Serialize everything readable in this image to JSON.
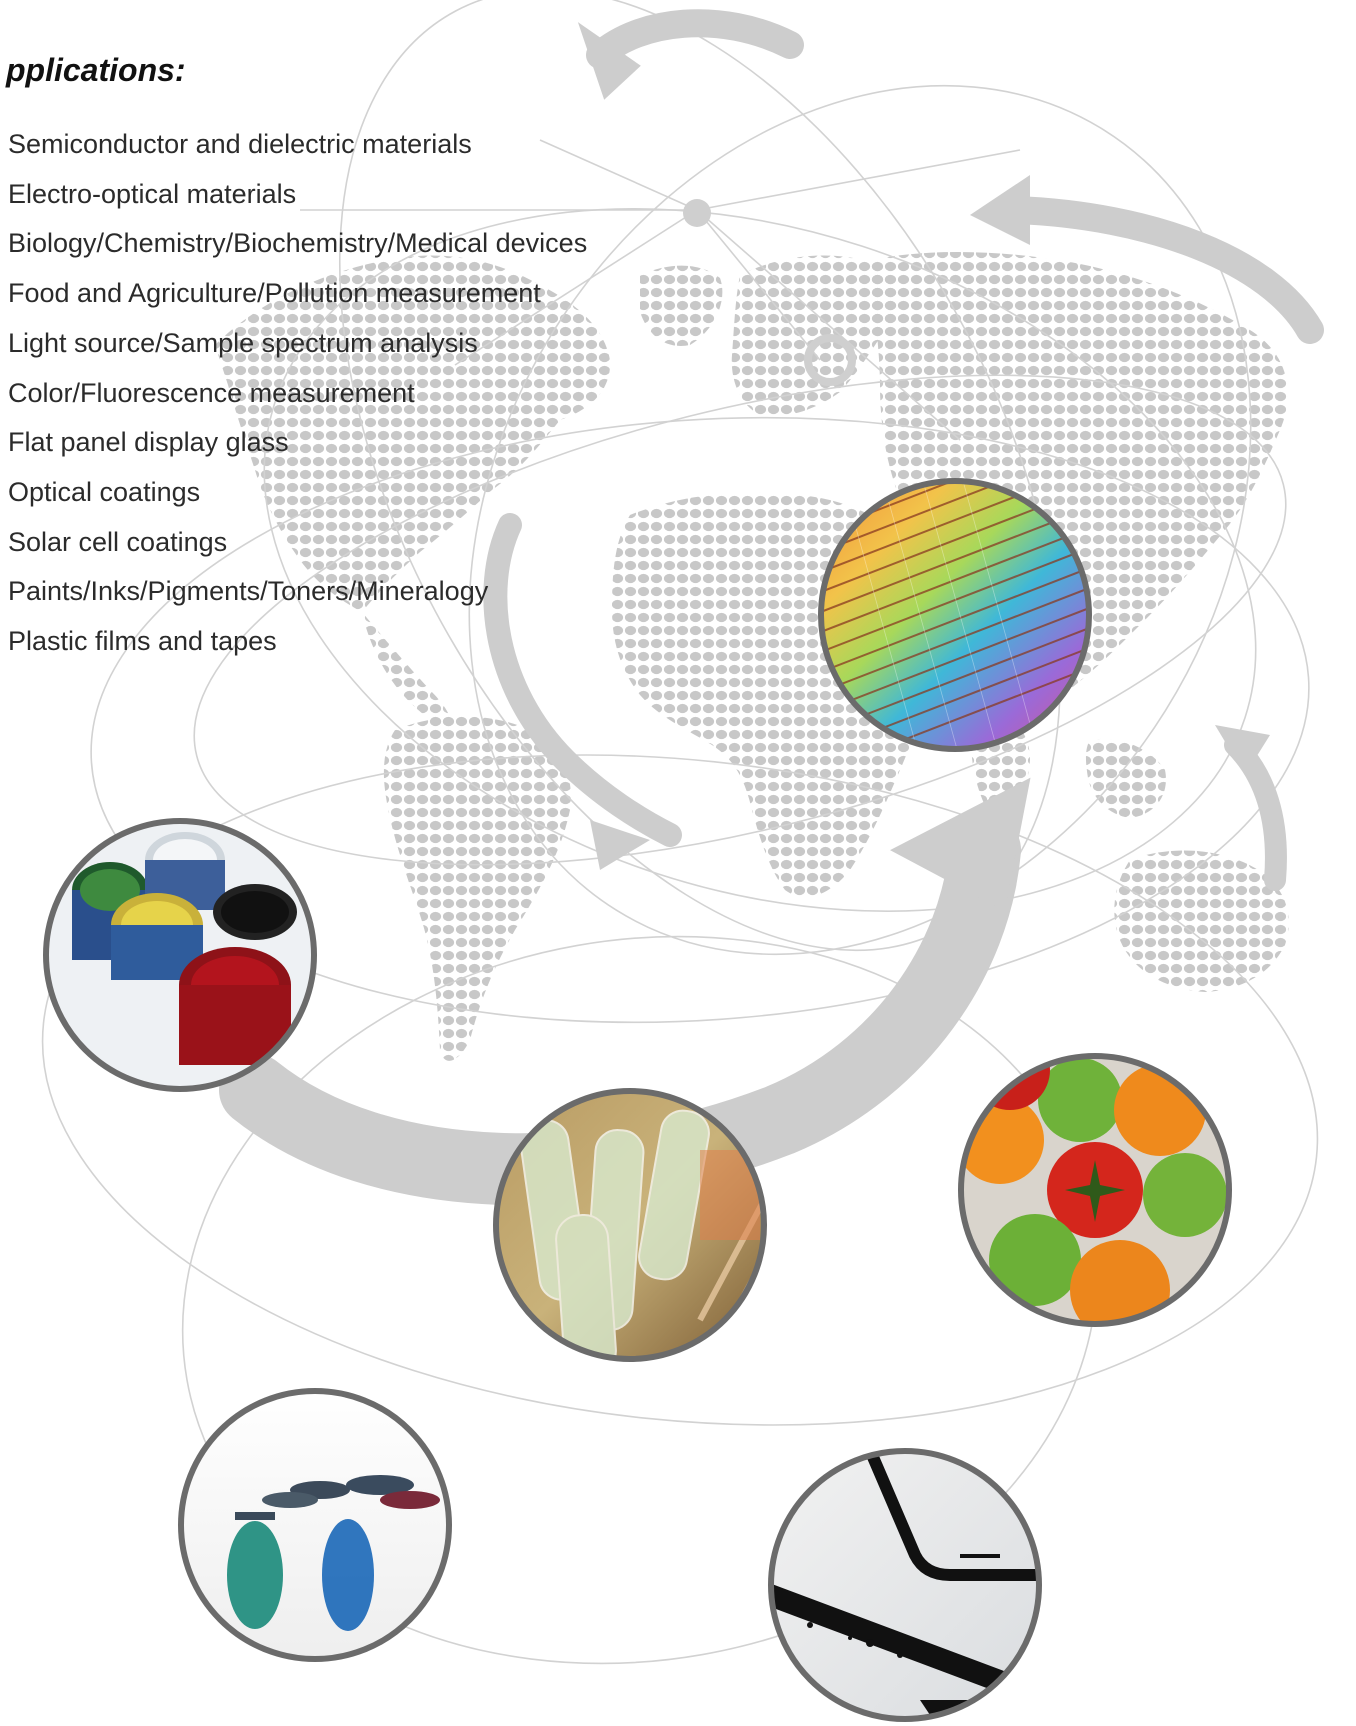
{
  "heading": "pplications:",
  "applications": [
    "Semiconductor and dielectric materials",
    "Electro-optical materials",
    "Biology/Chemistry/Biochemistry/Medical devices",
    "Food and Agriculture/Pollution measurement",
    "Light source/Sample spectrum analysis",
    "Color/Fluorescence measurement",
    "Flat panel display glass",
    "Optical coatings",
    "Solar cell coatings",
    "Paints/Inks/Pigments/Toners/Mineralogy",
    "Plastic films and tapes"
  ],
  "colors": {
    "map_dots": "#c8c8c8",
    "orbit_lines": "#d2d2d2",
    "arrows": "#cdcdcd",
    "photo_ring": "#6b6b6b",
    "text": "#2b2b2b"
  },
  "photos": [
    {
      "name": "semiconductor-wafer-photo",
      "icon": "wafer-icon"
    },
    {
      "name": "paint-cans-photo",
      "icon": "paint-can-icon"
    },
    {
      "name": "test-tubes-photo",
      "icon": "test-tube-icon"
    },
    {
      "name": "fruits-vegetables-photo",
      "icon": "fruit-icon"
    },
    {
      "name": "optical-filters-photo",
      "icon": "optical-filter-icon"
    },
    {
      "name": "display-glass-photo",
      "icon": "display-panel-icon"
    }
  ]
}
